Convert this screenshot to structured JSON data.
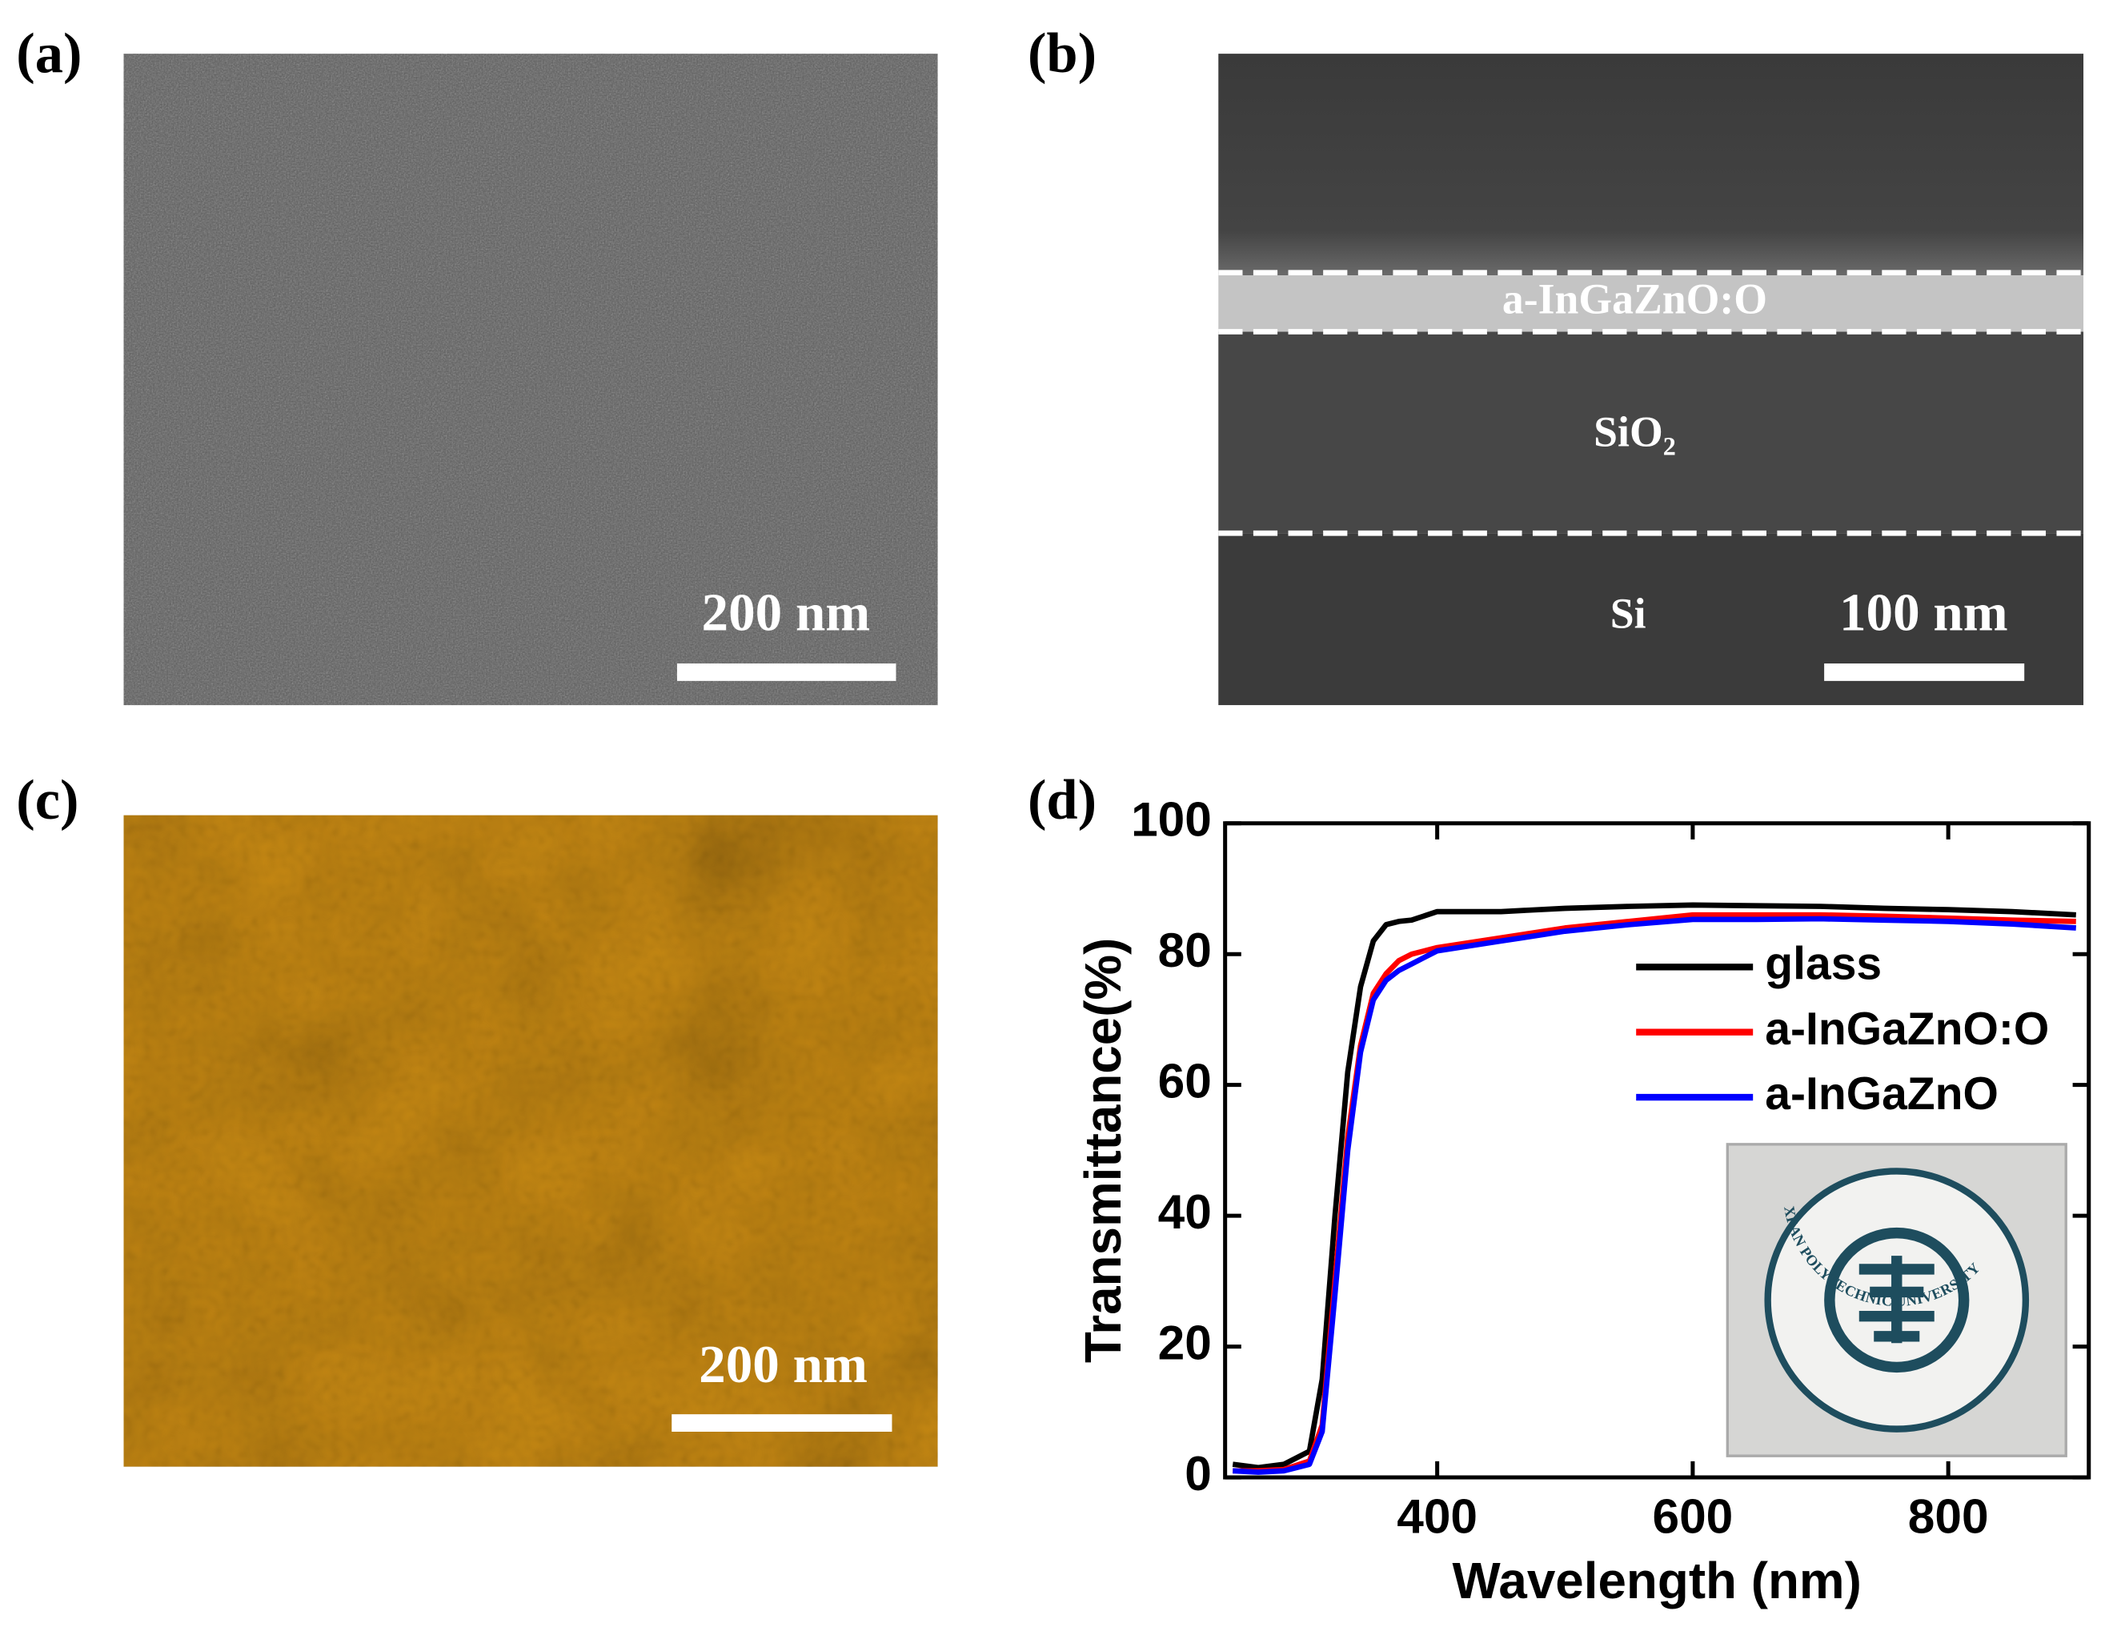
{
  "panels": {
    "a": {
      "label": "(a)",
      "scale_bar": "200 nm"
    },
    "b": {
      "label": "(b)",
      "layers": [
        "a-InGaZnO:O",
        "SiO₂",
        "Si"
      ],
      "scale_bar": "100 nm"
    },
    "c": {
      "label": "(c)",
      "scale_bar": "200 nm"
    },
    "d": {
      "label": "(d)"
    }
  },
  "inset": {
    "text": "XI'AN POLYTECHNIC UNIVERSITY"
  },
  "chart_data": {
    "type": "line",
    "x_label": "Wavelength (nm)",
    "y_label": "Transmittance(%)",
    "x": [
      240,
      260,
      280,
      300,
      310,
      320,
      330,
      340,
      350,
      360,
      370,
      380,
      400,
      450,
      500,
      550,
      600,
      650,
      700,
      750,
      800,
      850,
      900
    ],
    "series": [
      {
        "name": "glass",
        "color": "#000000",
        "values": [
          2,
          1.5,
          2,
          4,
          15,
          40,
          62,
          75,
          82,
          84.5,
          85,
          85.2,
          86.5,
          86.5,
          87,
          87.3,
          87.5,
          87.4,
          87.3,
          87,
          86.8,
          86.5,
          86
        ]
      },
      {
        "name": "a-InGaZnO:O",
        "color": "#ff0000",
        "values": [
          1,
          1,
          1.2,
          2.5,
          8,
          30,
          52,
          66,
          74,
          77,
          79,
          80,
          81,
          82.5,
          84,
          85,
          86,
          86,
          86,
          85.8,
          85.5,
          85.2,
          85
        ]
      },
      {
        "name": "a-InGaZnO",
        "color": "#0000ff",
        "values": [
          1,
          0.8,
          1,
          2,
          7,
          28,
          50,
          65,
          73,
          76,
          77.5,
          78.5,
          80.5,
          82,
          83.5,
          84.5,
          85.3,
          85.3,
          85.4,
          85.2,
          85,
          84.6,
          84
        ]
      }
    ],
    "xlim": [
      234,
      910
    ],
    "ylim": [
      0,
      100
    ],
    "xticks": [
      400,
      600,
      800
    ],
    "yticks": [
      0,
      20,
      40,
      60,
      80,
      100
    ],
    "legend": "right"
  }
}
